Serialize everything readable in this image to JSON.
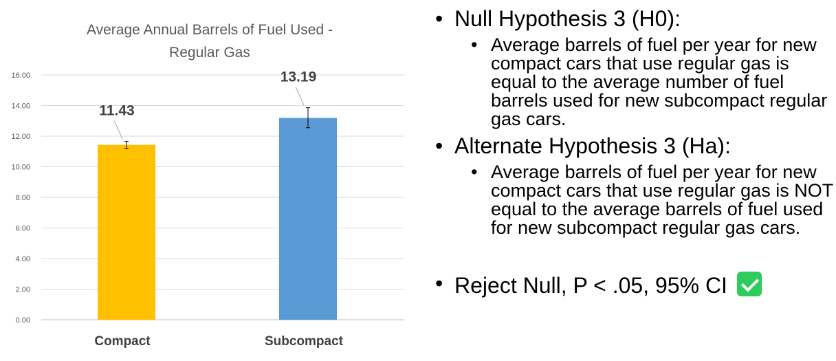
{
  "chart_data": {
    "type": "bar",
    "title_lines": [
      "Average Annual Barrels of Fuel Used -",
      "Regular Gas"
    ],
    "categories": [
      "Compact",
      "Subcompact"
    ],
    "values": [
      11.43,
      13.19
    ],
    "data_labels": [
      "11.43",
      "13.19"
    ],
    "error_bars": [
      [
        11.2,
        11.66
      ],
      [
        12.55,
        13.86
      ]
    ],
    "colors": [
      "#FFC000",
      "#5B9BD5"
    ],
    "ylim": [
      0,
      16
    ],
    "yticks": [
      "0.00",
      "2.00",
      "4.00",
      "6.00",
      "8.00",
      "10.00",
      "12.00",
      "14.00",
      "16.00"
    ],
    "grid": true,
    "legend": "none",
    "xlabel": "",
    "ylabel": ""
  },
  "slide": {
    "h0_heading": "Null Hypothesis 3 (H0):",
    "h0_text": "Average barrels of fuel per year for new compact cars that use regular gas is equal to the average number of fuel barrels used for new subcompact regular gas cars.",
    "ha_heading": "Alternate Hypothesis 3 (Ha):",
    "ha_text": "Average barrels of fuel per year for new compact cars that use regular gas is NOT equal to the average barrels of fuel used for new subcompact regular gas cars.",
    "conclusion": "Reject Null, P < .05, 95% CI",
    "bullet_char": "•",
    "conclusion_icon": "checkmark-icon"
  }
}
